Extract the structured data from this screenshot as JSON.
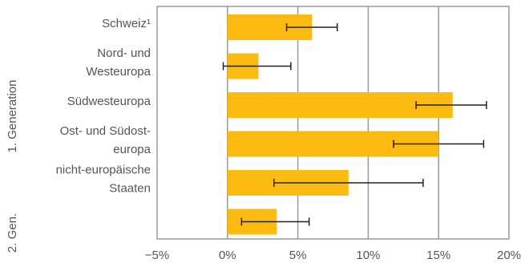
{
  "chart_data": {
    "type": "bar",
    "orientation": "horizontal",
    "categories": [
      [
        "Schweiz¹"
      ],
      [
        "Nord- und",
        "Westeuropa"
      ],
      [
        "Südwesteuropa"
      ],
      [
        "Ost- und Südost-",
        "europa"
      ],
      [
        "nicht-europäische",
        "Staaten"
      ],
      [
        ""
      ]
    ],
    "values": [
      6.0,
      2.2,
      16.0,
      15.0,
      8.6,
      3.5
    ],
    "error_low": [
      4.2,
      -0.3,
      13.4,
      11.8,
      3.3,
      1.0
    ],
    "error_high": [
      7.8,
      4.5,
      18.4,
      18.2,
      13.9,
      5.8
    ],
    "xlim": [
      -5,
      20
    ],
    "xticks": [
      -5,
      0,
      5,
      10,
      15,
      20
    ],
    "xtick_labels": [
      "−5%",
      "0%",
      "5%",
      "10%",
      "15%",
      "20%"
    ],
    "groups": [
      {
        "label": "1. Generation",
        "from": 0,
        "to": 4
      },
      {
        "label": "2. Gen.",
        "from": 5,
        "to": 5
      }
    ],
    "grid": true,
    "bar_color": "#FDBB12",
    "grid_color": "#9a9a9a",
    "error_color": "#222222"
  }
}
